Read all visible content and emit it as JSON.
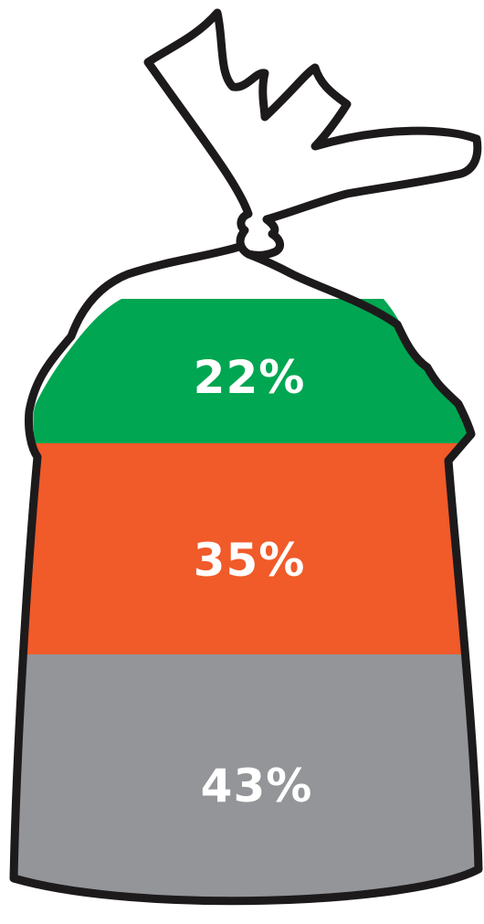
{
  "chart_data": {
    "type": "stacked-bar",
    "title": "",
    "categories": [
      ""
    ],
    "series": [
      {
        "label": "22%",
        "value": 22,
        "color": "#00a651"
      },
      {
        "label": "35%",
        "value": 35,
        "color": "#f15a29"
      },
      {
        "label": "43%",
        "value": 43,
        "color": "#939598"
      }
    ],
    "ylim": [
      0,
      100
    ],
    "grid": false,
    "legend": "none"
  },
  "icons": {
    "container": "tied-bag-icon"
  }
}
